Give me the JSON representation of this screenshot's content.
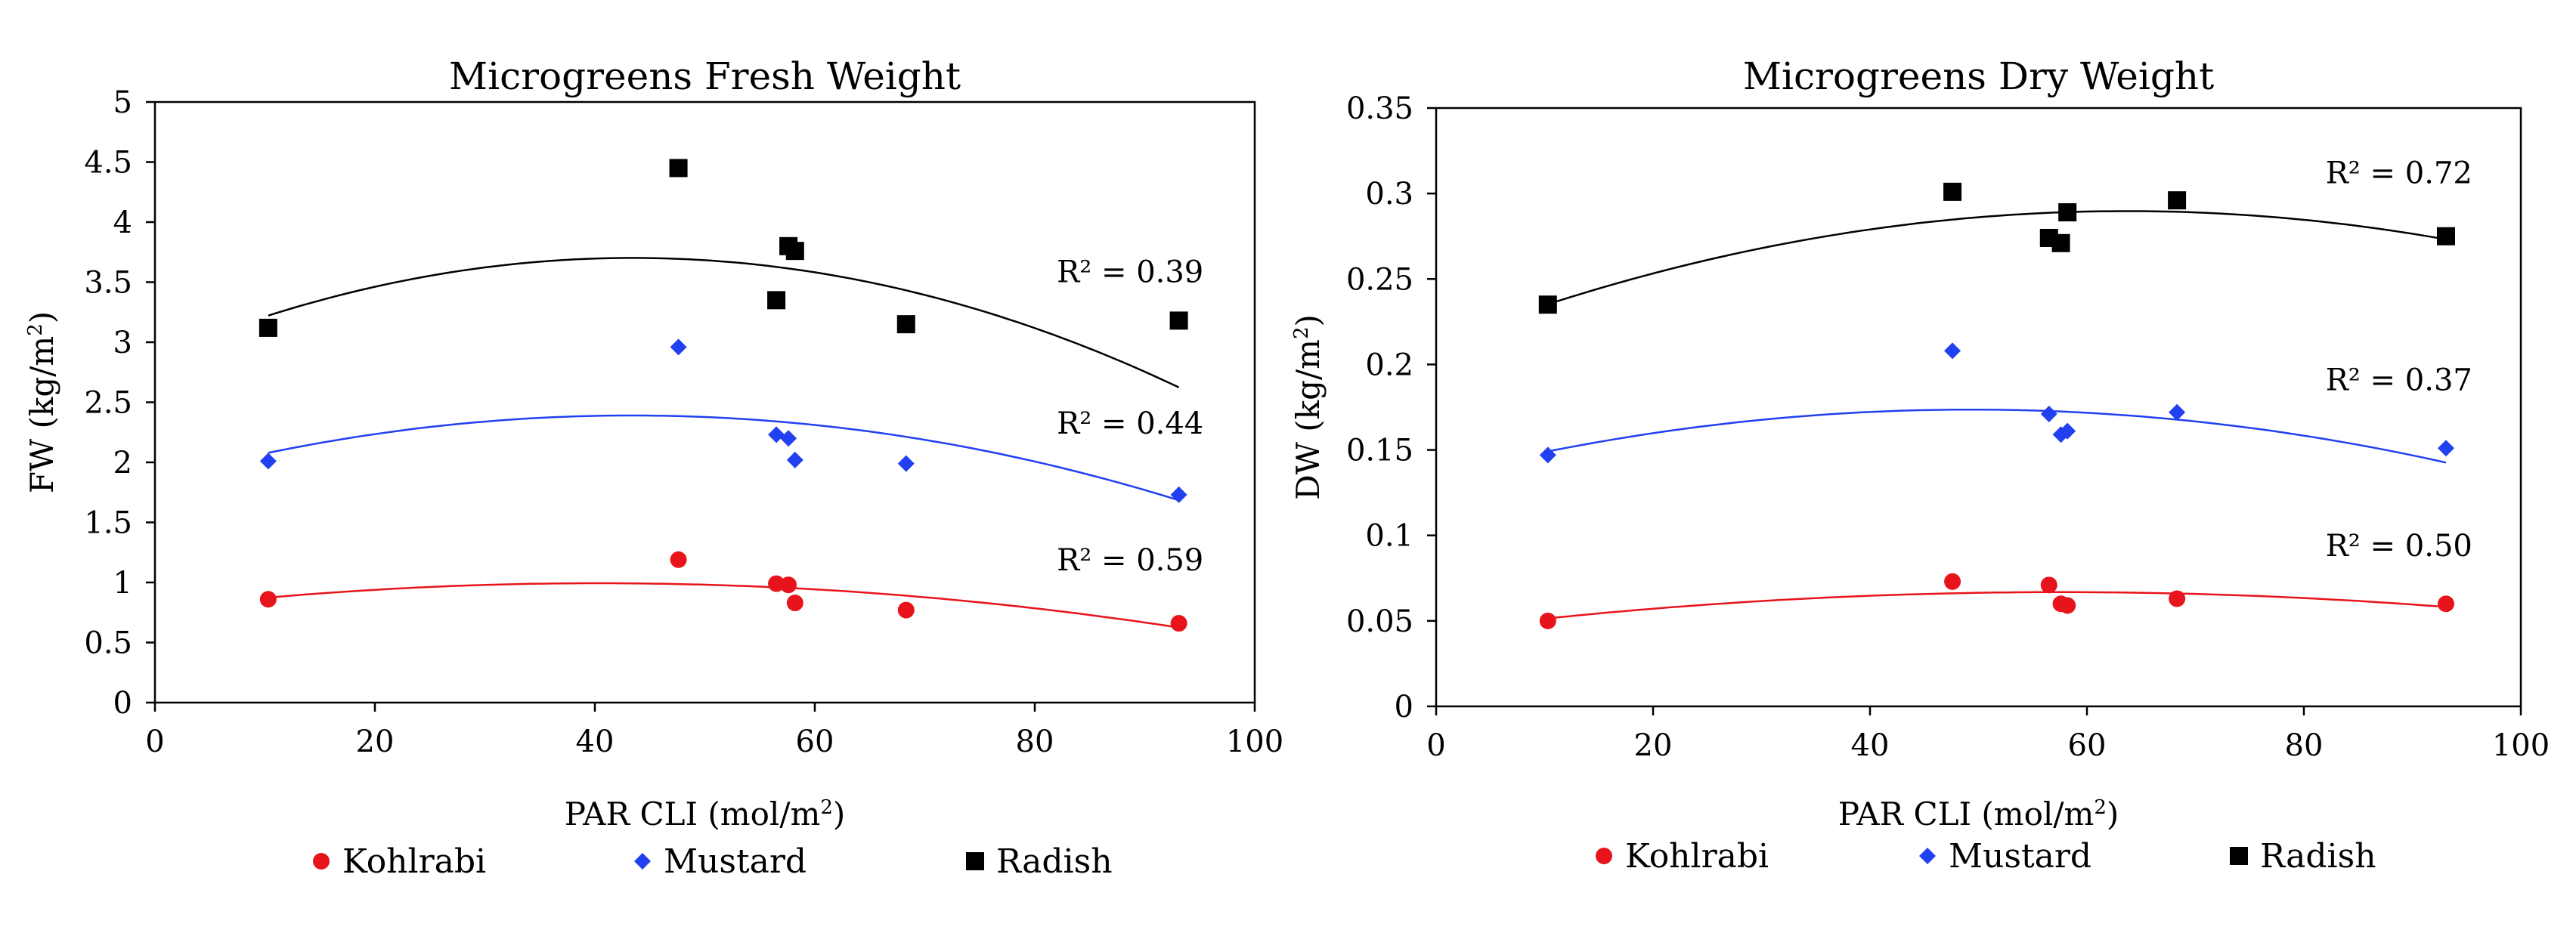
{
  "colors": {
    "Kohlrabi": "#e8141b",
    "Mustard": "#2140f0",
    "Radish": "#000000"
  },
  "markers": {
    "Kohlrabi": "circle",
    "Mustard": "diamond",
    "Radish": "square"
  },
  "chart_data": [
    {
      "type": "scatter",
      "title": "Microgreens Fresh Weight",
      "xlabel": "PAR CLI (mol/m",
      "xlabel_sup": "2",
      "xlabel_end": ")",
      "ylabel": "FW (kg/m",
      "ylabel_sup": "2",
      "ylabel_end": ")",
      "xlim": [
        0,
        100
      ],
      "ylim": [
        0,
        5
      ],
      "xticks": [
        "0",
        "20",
        "40",
        "60",
        "80",
        "100"
      ],
      "yticks": [
        "0",
        "0.5",
        "1",
        "1.5",
        "2",
        "2.5",
        "3",
        "3.5",
        "4",
        "4.5",
        "5"
      ],
      "grid": false,
      "legend_position": "bottom",
      "series": [
        {
          "name": "Kohlrabi",
          "r2": "R² = 0.59",
          "r2_at": [
            82,
            1.1
          ],
          "x": [
            10.3,
            47.6,
            56.5,
            57.6,
            58.2,
            68.3,
            93.1
          ],
          "y": [
            0.86,
            1.19,
            0.99,
            0.98,
            0.83,
            0.77,
            0.66
          ],
          "fit": [
            0.778,
            0.01069,
            -0.0001325
          ]
        },
        {
          "name": "Mustard",
          "r2": "R² = 0.44",
          "r2_at": [
            82,
            2.24
          ],
          "x": [
            10.3,
            47.6,
            56.5,
            57.6,
            58.2,
            68.3,
            93.1
          ],
          "y": [
            2.01,
            2.96,
            2.23,
            2.2,
            2.02,
            1.99,
            1.73
          ],
          "fit": [
            1.855,
            0.0247,
            -0.000285
          ]
        },
        {
          "name": "Radish",
          "r2": "R² = 0.39",
          "r2_at": [
            82,
            3.5
          ],
          "x": [
            10.3,
            47.6,
            56.5,
            57.6,
            58.2,
            68.3,
            93.1
          ],
          "y": [
            3.12,
            4.45,
            3.35,
            3.8,
            3.76,
            3.15,
            3.18
          ],
          "fit": [
            2.877,
            0.03797,
            -0.000437
          ]
        }
      ]
    },
    {
      "type": "scatter",
      "title": "Microgreens Dry Weight",
      "xlabel": "PAR CLI (mol/m",
      "xlabel_sup": "2",
      "xlabel_end": ")",
      "ylabel": "DW (kg/m",
      "ylabel_sup": "2",
      "ylabel_end": ")",
      "xlim": [
        0,
        100
      ],
      "ylim": [
        0,
        0.35
      ],
      "xticks": [
        "0",
        "20",
        "40",
        "60",
        "80",
        "100"
      ],
      "yticks": [
        "0",
        "0.05",
        "0.1",
        "0.15",
        "0.2",
        "0.25",
        "0.3",
        "0.35"
      ],
      "grid": false,
      "legend_position": "bottom",
      "series": [
        {
          "name": "Kohlrabi",
          "r2": "R² = 0.50",
          "r2_at": [
            82,
            0.088
          ],
          "x": [
            10.3,
            47.6,
            56.5,
            57.6,
            58.2,
            68.3,
            93.1
          ],
          "y": [
            0.05,
            0.073,
            0.071,
            0.06,
            0.059,
            0.063,
            0.06
          ],
          "fit": [
            0.04405,
            0.000791,
            -6.87e-06
          ]
        },
        {
          "name": "Mustard",
          "r2": "R² = 0.37",
          "r2_at": [
            82,
            0.185
          ],
          "x": [
            10.3,
            47.6,
            56.5,
            57.6,
            58.2,
            68.3,
            93.1
          ],
          "y": [
            0.147,
            0.208,
            0.171,
            0.159,
            0.161,
            0.172,
            0.151
          ],
          "fit": [
            0.1345,
            0.001587,
            -1.611e-05
          ]
        },
        {
          "name": "Radish",
          "r2": "R² = 0.72",
          "r2_at": [
            82,
            0.306
          ],
          "x": [
            10.3,
            47.6,
            56.5,
            57.6,
            58.2,
            68.3,
            93.1
          ],
          "y": [
            0.235,
            0.301,
            0.274,
            0.271,
            0.289,
            0.296,
            0.275
          ],
          "fit": [
            0.2122,
            0.002434,
            -1.911e-05
          ]
        }
      ]
    }
  ]
}
